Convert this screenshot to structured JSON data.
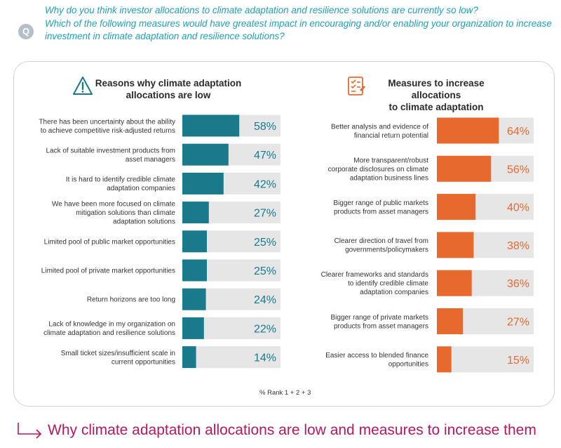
{
  "question": {
    "badge": "Q",
    "lines": [
      "Why do you think investor allocations to climate adaptation and resilience solutions are currently so low?",
      "Which of the following measures would have greatest impact in encouraging and/or enabling your organization to increase",
      "investment in climate adaptation and resilience solutions?"
    ]
  },
  "colors": {
    "left_bar": "#1a7a8c",
    "right_bar": "#e8692e",
    "track": "#e6e6e6",
    "footer": "#b5185f",
    "question": "#20a0b8"
  },
  "rank_note": "% Rank 1 + 2 + 3",
  "footer": {
    "text": "Why climate adaptation allocations are low and measures to increase them",
    "icon": "arrow-right-icon"
  },
  "chart_data": [
    {
      "type": "bar",
      "orientation": "horizontal",
      "title": [
        "Reasons why climate adaptation",
        "allocations are low"
      ],
      "icon": "warning-icon",
      "categories": [
        [
          "There has been uncertainty about the ability",
          "to achieve competitive risk-adjusted returns"
        ],
        [
          "Lack of suitable investment products from",
          "asset managers"
        ],
        [
          "It is hard to identify credible climate",
          "adaptation companies"
        ],
        [
          "We have been more focused on climate",
          "mitigation solutions than climate",
          "adaptation solutions"
        ],
        [
          "Limited pool of public market opportunities"
        ],
        [
          "Limited pool of private market opportunities"
        ],
        [
          "Return horizons are too long"
        ],
        [
          "Lack of knowledge in my organization on",
          "climate adaptation and resilience solutions"
        ],
        [
          "Small ticket sizes/insufficient scale in",
          "current opportunities"
        ]
      ],
      "values": [
        58,
        47,
        42,
        27,
        25,
        25,
        24,
        22,
        14
      ],
      "value_labels": [
        "58%",
        "47%",
        "42%",
        "27%",
        "25%",
        "25%",
        "24%",
        "22%",
        "14%"
      ],
      "xlim": [
        0,
        100
      ],
      "unit": "%"
    },
    {
      "type": "bar",
      "orientation": "horizontal",
      "title": [
        "Measures to increase allocations",
        "to climate adaptation"
      ],
      "icon": "checklist-icon",
      "categories": [
        [
          "Better analysis and evidence of",
          "financial return potential"
        ],
        [
          "More transparent/robust",
          "corporate disclosures on climate",
          "adaptation business lines"
        ],
        [
          "Bigger range of public markets",
          "products from asset managers"
        ],
        [
          "Clearer direction of travel from",
          "governments/policymakers"
        ],
        [
          "Clearer frameworks and standards",
          "to identify credible climate",
          "adaptation companies"
        ],
        [
          "Bigger range of private markets",
          "products from asset managers"
        ],
        [
          "Easier access to blended finance",
          "opportunities"
        ]
      ],
      "values": [
        64,
        56,
        40,
        38,
        36,
        27,
        15
      ],
      "value_labels": [
        "64%",
        "56%",
        "40%",
        "38%",
        "36%",
        "27%",
        "15%"
      ],
      "xlim": [
        0,
        100
      ],
      "unit": "%"
    }
  ]
}
